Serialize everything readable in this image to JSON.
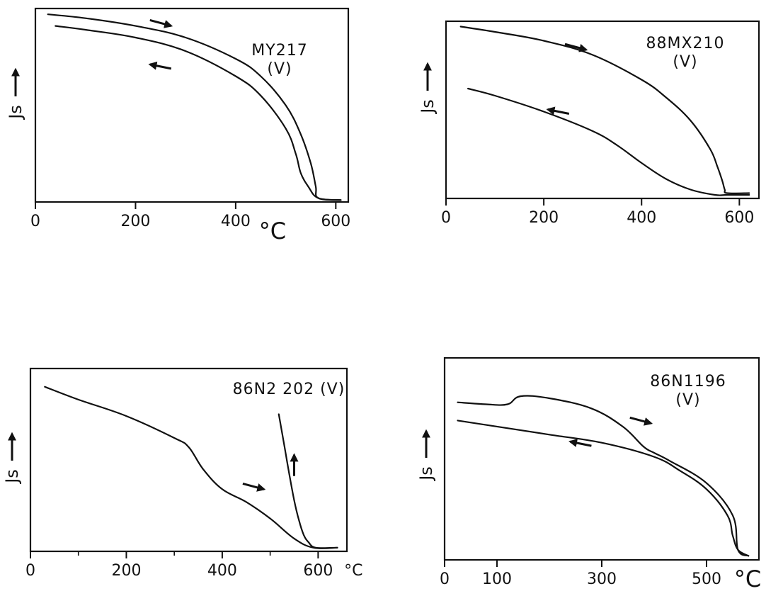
{
  "chart_data": [
    {
      "id": "p1",
      "type": "line",
      "title_lines": [
        "MY217",
        "(V)"
      ],
      "ylabel": "Js",
      "yaxis_arrow": true,
      "xunit": "°C",
      "unit_style": "large",
      "xlim": [
        0,
        625
      ],
      "ylim": [
        0,
        1
      ],
      "xticks": [
        0,
        200,
        400,
        600
      ],
      "xtick_labels": [
        "0",
        "200",
        "400",
        "600"
      ],
      "unit_after_tick": 2,
      "series": [
        {
          "direction": "heating",
          "x": [
            25,
            100,
            200,
            300,
            400,
            450,
            500,
            530,
            550,
            560,
            565,
            610
          ],
          "y": [
            0.97,
            0.95,
            0.91,
            0.85,
            0.74,
            0.65,
            0.5,
            0.35,
            0.2,
            0.08,
            0.02,
            0.01
          ]
        },
        {
          "direction": "cooling",
          "x": [
            40,
            100,
            200,
            300,
            400,
            450,
            500,
            520,
            530,
            545,
            565,
            610
          ],
          "y": [
            0.91,
            0.89,
            0.85,
            0.78,
            0.65,
            0.55,
            0.38,
            0.25,
            0.15,
            0.08,
            0.02,
            0.01
          ]
        }
      ],
      "arrows": [
        {
          "x": 250,
          "y": 0.925,
          "dir": "right"
        },
        {
          "x": 250,
          "y": 0.7,
          "dir": "left"
        }
      ]
    },
    {
      "id": "p2",
      "type": "line",
      "title_lines": [
        "88MX210",
        "(V)"
      ],
      "ylabel": "Js",
      "yaxis_arrow": true,
      "xunit": "°C",
      "unit_style": "small",
      "xlim": [
        0,
        640
      ],
      "ylim": [
        0,
        1
      ],
      "xticks": [
        0,
        200,
        400,
        600
      ],
      "xtick_labels": [
        "0",
        "200",
        "400",
        "600"
      ],
      "series": [
        {
          "direction": "heating",
          "x": [
            30,
            100,
            200,
            300,
            400,
            450,
            500,
            540,
            555,
            565,
            570,
            575,
            620
          ],
          "y": [
            0.97,
            0.94,
            0.89,
            0.81,
            0.67,
            0.57,
            0.44,
            0.28,
            0.18,
            0.1,
            0.05,
            0.03,
            0.03
          ]
        },
        {
          "direction": "cooling",
          "x": [
            45,
            100,
            200,
            300,
            350,
            400,
            450,
            500,
            550,
            575,
            620
          ],
          "y": [
            0.62,
            0.58,
            0.49,
            0.38,
            0.3,
            0.2,
            0.11,
            0.05,
            0.02,
            0.02,
            0.02
          ]
        }
      ],
      "arrows": [
        {
          "x": 265,
          "y": 0.855,
          "dir": "right"
        },
        {
          "x": 230,
          "y": 0.49,
          "dir": "left"
        }
      ]
    },
    {
      "id": "p3",
      "type": "line",
      "title_lines": [
        "86N2 202 (V)"
      ],
      "ylabel": "Js",
      "yaxis_arrow": true,
      "xunit": "°C",
      "unit_style": "small",
      "xlim": [
        0,
        660
      ],
      "ylim": [
        0,
        1
      ],
      "xticks": [
        0,
        200,
        400,
        600
      ],
      "xtick_labels": [
        "0",
        "200",
        "400",
        "600"
      ],
      "minor_xticks": [
        100,
        300,
        500
      ],
      "series": [
        {
          "direction": "heating",
          "x": [
            30,
            100,
            200,
            300,
            330,
            360,
            400,
            450,
            500,
            550,
            590,
            640
          ],
          "y": [
            0.9,
            0.83,
            0.74,
            0.62,
            0.57,
            0.45,
            0.34,
            0.27,
            0.18,
            0.07,
            0.02,
            0.02
          ]
        },
        {
          "direction": "cooling",
          "x": [
            518,
            530,
            540,
            550,
            560,
            570,
            580,
            595,
            640
          ],
          "y": [
            0.75,
            0.57,
            0.42,
            0.28,
            0.17,
            0.09,
            0.05,
            0.02,
            0.02
          ]
        }
      ],
      "arrows": [
        {
          "x": 465,
          "y": 0.355,
          "dir": "right"
        },
        {
          "x": 550,
          "y": 0.47,
          "dir": "up"
        }
      ]
    },
    {
      "id": "p4",
      "type": "line",
      "title_lines": [
        "86N1196",
        "(V)"
      ],
      "ylabel": "Js",
      "yaxis_arrow": true,
      "xunit": "°C",
      "unit_style": "large",
      "xlim": [
        0,
        600
      ],
      "ylim": [
        0,
        1
      ],
      "xticks": [
        0,
        100,
        300,
        500
      ],
      "xtick_labels": [
        "0",
        "100",
        "300",
        "500"
      ],
      "series": [
        {
          "direction": "heating",
          "x": [
            25,
            80,
            120,
            145,
            200,
            280,
            340,
            380,
            400,
            430,
            500,
            550,
            560,
            580
          ],
          "y": [
            0.78,
            0.77,
            0.77,
            0.81,
            0.8,
            0.75,
            0.66,
            0.56,
            0.53,
            0.49,
            0.38,
            0.22,
            0.05,
            0.02
          ]
        },
        {
          "direction": "cooling",
          "x": [
            25,
            100,
            200,
            300,
            400,
            450,
            500,
            540,
            550,
            560,
            580
          ],
          "y": [
            0.69,
            0.66,
            0.62,
            0.58,
            0.51,
            0.44,
            0.35,
            0.22,
            0.12,
            0.05,
            0.02
          ]
        }
      ],
      "arrows": [
        {
          "x": 374,
          "y": 0.69,
          "dir": "right"
        },
        {
          "x": 260,
          "y": 0.575,
          "dir": "left"
        }
      ]
    }
  ]
}
